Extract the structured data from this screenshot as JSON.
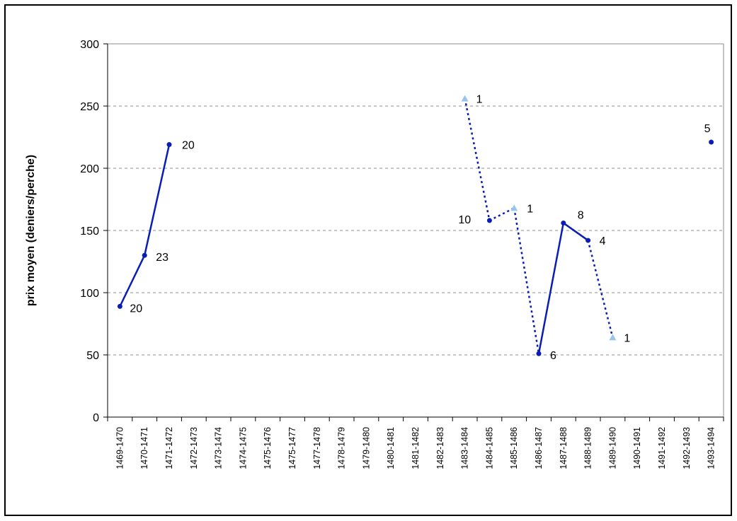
{
  "chart_data": {
    "type": "line",
    "title": "",
    "xlabel": "",
    "ylabel": "prix moyen (deniers/perche)",
    "ylim": [
      0,
      300
    ],
    "yticks": [
      0,
      50,
      100,
      150,
      200,
      250,
      300
    ],
    "grid": "horizontal-dashed",
    "categories": [
      "1469-1470",
      "1470-1471",
      "1471-1472",
      "1472-1473",
      "1473-1474",
      "1474-1475",
      "1475-1476",
      "1475-1477",
      "1477-1478",
      "1478-1479",
      "1479-1480",
      "1480-1481",
      "1481-1482",
      "1482-1483",
      "1483-1484",
      "1484-1485",
      "1485-1486",
      "1486-1487",
      "1487-1488",
      "1488-1489",
      "1489-1490",
      "1490-1491",
      "1491-1492",
      "1492-1493",
      "1493-1494"
    ],
    "series": [
      {
        "marker": "circle",
        "color": "#0a1eb4",
        "values": [
          89,
          130,
          219,
          null,
          null,
          null,
          null,
          null,
          null,
          null,
          null,
          null,
          null,
          null,
          null,
          158,
          null,
          51,
          156,
          142,
          null,
          null,
          null,
          null,
          221
        ],
        "labels": [
          "20",
          "23",
          "20",
          null,
          null,
          null,
          null,
          null,
          null,
          null,
          null,
          null,
          null,
          null,
          null,
          "10",
          null,
          "6",
          "8",
          "4",
          null,
          null,
          null,
          null,
          "5"
        ]
      },
      {
        "marker": "triangle",
        "color": "#99c4ee",
        "values": [
          null,
          null,
          null,
          null,
          null,
          null,
          null,
          null,
          null,
          null,
          null,
          null,
          null,
          null,
          256,
          null,
          168,
          null,
          null,
          null,
          64,
          null,
          null,
          null,
          null
        ],
        "labels": [
          null,
          null,
          null,
          null,
          null,
          null,
          null,
          null,
          null,
          null,
          null,
          null,
          null,
          null,
          "1",
          null,
          "1",
          null,
          null,
          null,
          "1",
          null,
          null,
          null,
          null
        ]
      }
    ],
    "connectors": {
      "solid": [
        [
          0,
          1
        ],
        [
          1,
          2
        ],
        [
          17,
          18
        ],
        [
          18,
          19
        ]
      ],
      "dotted": [
        [
          14,
          15
        ],
        [
          15,
          16
        ],
        [
          16,
          17
        ],
        [
          19,
          20
        ]
      ]
    },
    "line_color": "#0a1eb4"
  }
}
